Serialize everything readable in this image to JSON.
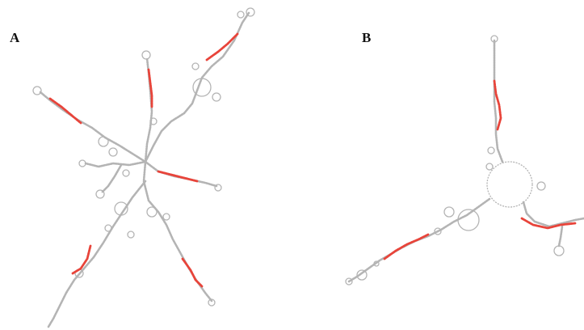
{
  "figure": {
    "panel_a_label": "A",
    "panel_b_label": "B"
  },
  "colors": {
    "structure": "#b4b4b4",
    "highlight": "#e8443a",
    "label": "#111111",
    "background": "#ffffff"
  }
}
